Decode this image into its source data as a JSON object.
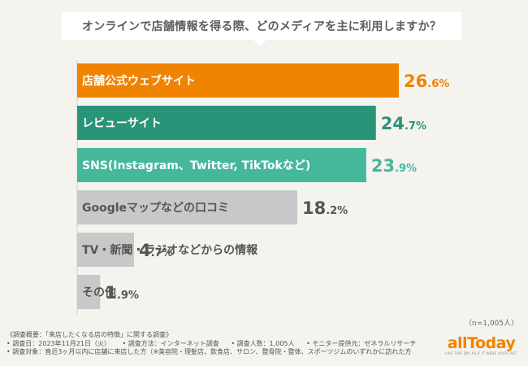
{
  "title": "オンラインで店舗情報を得る際、どのメディアを主に利用しますか？",
  "chart_data": {
    "type": "bar",
    "orientation": "horizontal",
    "title": "オンラインで店舗情報を得る際、どのメディアを主に利用しますか？",
    "categories": [
      "店舗公式ウェブサイト",
      "レビューサイト",
      "SNS(Instagram、Twitter, TikTokなど)",
      "Googleマップなどの口コミ",
      "TV・新聞・ラジオなどからの情報",
      "その他"
    ],
    "values": [
      26.6,
      24.7,
      23.9,
      18.2,
      4.7,
      1.9
    ],
    "value_labels": [
      "26.6%",
      "24.7%",
      "23.9%",
      "18.2%",
      "4.7%",
      "1.9%"
    ],
    "unit": "%",
    "colors": [
      "#f08300",
      "#2a9478",
      "#45b89b",
      "#c8c8c8",
      "#c8c8c8",
      "#c8c8c8"
    ],
    "label_colors": [
      "#ffffff",
      "#ffffff",
      "#ffffff",
      "#555555",
      "#555555",
      "#555555"
    ],
    "value_colors": [
      "#f08300",
      "#2a9478",
      "#45b89b",
      "#555555",
      "#555555",
      "#555555"
    ],
    "xlim": [
      0,
      27
    ],
    "grid": false,
    "legend": "none",
    "xlabel": "",
    "ylabel": ""
  },
  "n_note": "（n=1,005人）",
  "footer": {
    "line1": "《調査概要：「来店したくなる店の特徴」に関する調査》",
    "line2_a": "• 調査日：2023年11月21日（火）",
    "line2_b": "• 調査方法：インターネット調査",
    "line2_c": "• 調査人数：1,005人",
    "line2_d": "• モニター提供元：ゼネラルリサーチ",
    "line3": "• 調査対象：直近3ヶ月以内に店舗に来店した方（※美容院・理髪店、飲食店、サロン、整骨院・整体、スポーツジムのいずれかに訪れた方"
  },
  "logo": {
    "word": "allToday",
    "tagline": "LIVE THIS DAY AS IF IT WERE YOUR LAST"
  }
}
